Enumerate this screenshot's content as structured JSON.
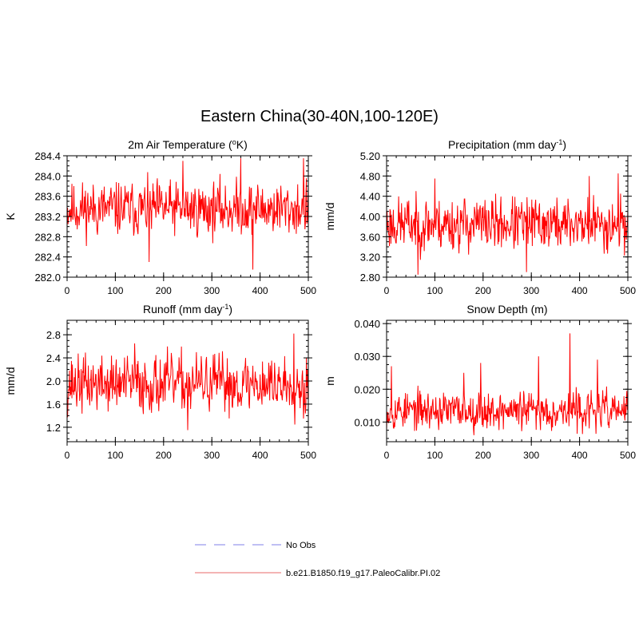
{
  "title": "Eastern China(30-40N,100-120E)",
  "legend": [
    {
      "label": "No Obs",
      "color": "#9999ee",
      "dash": true
    },
    {
      "label": "b.e21.B1850.f19_g17.PaleoCalibr.PI.02",
      "color": "#ee8888",
      "dash": false
    }
  ],
  "series_color": "#ff0000",
  "chart_data": [
    {
      "type": "line",
      "title_main": "2m Air Temperature (",
      "title_sup": "o",
      "title_end": "K)",
      "ylabel": "K",
      "xlim": [
        0,
        500
      ],
      "ylim": [
        282.0,
        284.4
      ],
      "xticks": [
        0,
        100,
        200,
        300,
        400,
        500
      ],
      "yticks": [
        "282.0",
        "282.4",
        "282.8",
        "283.2",
        "283.6",
        "284.0",
        "284.4"
      ],
      "mean": 283.35,
      "amp": 0.32,
      "spikes": [
        [
          240,
          284.3
        ],
        [
          360,
          284.35
        ],
        [
          385,
          282.15
        ],
        [
          490,
          284.35
        ],
        [
          170,
          282.3
        ]
      ],
      "seed": 11
    },
    {
      "type": "line",
      "title_main": "Precipitation (mm day",
      "title_sup": "-1",
      "title_end": ")",
      "ylabel": "mm/d",
      "xlim": [
        0,
        500
      ],
      "ylim": [
        2.8,
        5.2
      ],
      "xticks": [
        0,
        100,
        200,
        300,
        400,
        500
      ],
      "yticks": [
        "2.80",
        "3.20",
        "3.60",
        "4.00",
        "4.40",
        "4.80",
        "5.20"
      ],
      "mean": 3.85,
      "amp": 0.32,
      "spikes": [
        [
          65,
          2.85
        ],
        [
          290,
          2.9
        ],
        [
          480,
          4.85
        ],
        [
          100,
          4.75
        ],
        [
          420,
          4.8
        ]
      ],
      "seed": 23
    },
    {
      "type": "line",
      "title_main": "Runoff (mm day",
      "title_sup": "-1",
      "title_end": ")",
      "ylabel": "mm/d",
      "xlim": [
        0,
        500
      ],
      "ylim": [
        0.95,
        3.05
      ],
      "xticks": [
        0,
        100,
        200,
        300,
        400,
        500
      ],
      "yticks": [
        "1.2",
        "1.6",
        "2.0",
        "2.4",
        "2.8"
      ],
      "ytickvals": [
        1.2,
        1.6,
        2.0,
        2.4,
        2.8
      ],
      "mean": 1.95,
      "amp": 0.3,
      "spikes": [
        [
          470,
          2.82
        ],
        [
          250,
          1.15
        ],
        [
          140,
          2.65
        ],
        [
          490,
          1.35
        ]
      ],
      "seed": 37
    },
    {
      "type": "line",
      "title_main": "Snow Depth (m)",
      "title_sup": "",
      "title_end": "",
      "ylabel": "m",
      "xlim": [
        0,
        500
      ],
      "ylim": [
        0.004,
        0.041
      ],
      "xticks": [
        0,
        100,
        200,
        300,
        400,
        500
      ],
      "yticks": [
        "0.010",
        "0.020",
        "0.030",
        "0.040"
      ],
      "ytickvals": [
        0.01,
        0.02,
        0.03,
        0.04
      ],
      "mean": 0.0135,
      "amp": 0.0035,
      "spikes": [
        [
          380,
          0.037
        ],
        [
          315,
          0.03
        ],
        [
          437,
          0.029
        ],
        [
          195,
          0.028
        ],
        [
          160,
          0.025
        ],
        [
          10,
          0.027
        ]
      ],
      "seed": 53
    }
  ]
}
